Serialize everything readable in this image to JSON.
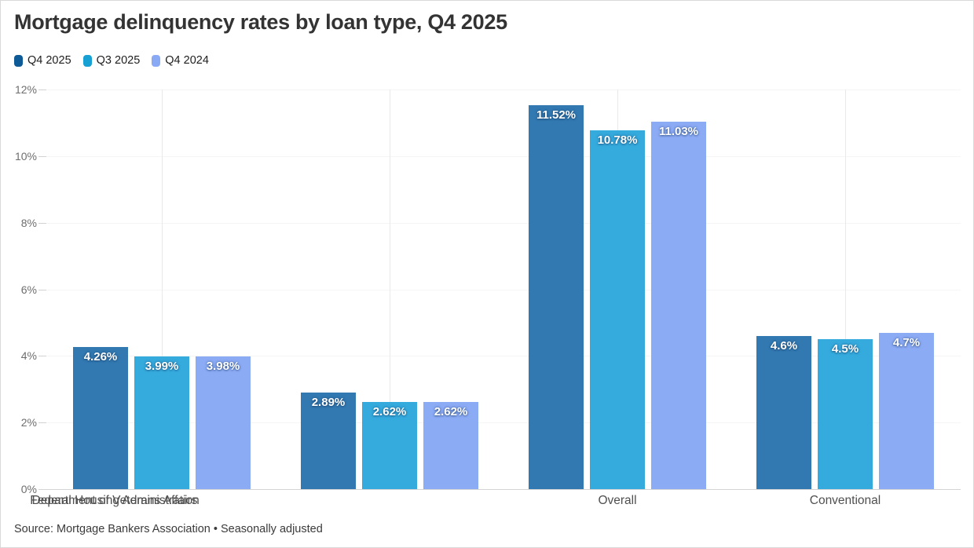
{
  "header": {
    "title": "Mortgage delinquency rates by loan type, Q4 2025"
  },
  "footer": {
    "source": "Source: Mortgage Bankers Association • Seasonally adjusted"
  },
  "chart_data": {
    "type": "bar",
    "title": "Mortgage delinquency rates by loan type, Q4 2025",
    "categories": [
      "Overall",
      "Conventional",
      "Federal Housing Administration",
      "Department of Veterans Affairs"
    ],
    "series": [
      {
        "name": "Q4 2025",
        "bar_color": "#3279b1",
        "swatch_color": "#0d5a96",
        "values": [
          4.26,
          2.89,
          11.52,
          4.6
        ],
        "labels": [
          "4.26%",
          "2.89%",
          "11.52%",
          "4.6%"
        ]
      },
      {
        "name": "Q3 2025",
        "bar_color": "#35aadd",
        "swatch_color": "#17a0d3",
        "values": [
          3.99,
          2.62,
          10.78,
          4.5
        ],
        "labels": [
          "3.99%",
          "2.62%",
          "10.78%",
          "4.5%"
        ]
      },
      {
        "name": "Q4 2024",
        "bar_color": "#8cabf5",
        "swatch_color": "#8aa9f5",
        "values": [
          3.98,
          2.62,
          11.03,
          4.7
        ],
        "labels": [
          "3.98%",
          "2.62%",
          "11.03%",
          "4.7%"
        ]
      }
    ],
    "xlabel": "",
    "ylabel": "",
    "ylim": [
      0,
      12
    ],
    "yticks": [
      {
        "label": "0%",
        "value": 0
      },
      {
        "label": "2%",
        "value": 2
      },
      {
        "label": "4%",
        "value": 4
      },
      {
        "label": "6%",
        "value": 6
      },
      {
        "label": "8%",
        "value": 8
      },
      {
        "label": "10%",
        "value": 10
      },
      {
        "label": "12%",
        "value": 12
      }
    ],
    "grid": {
      "vertical_category_lines": true,
      "horizontal_lines": "very-faint"
    },
    "legend_position": "top-left",
    "value_labels": "inside-top-white"
  }
}
